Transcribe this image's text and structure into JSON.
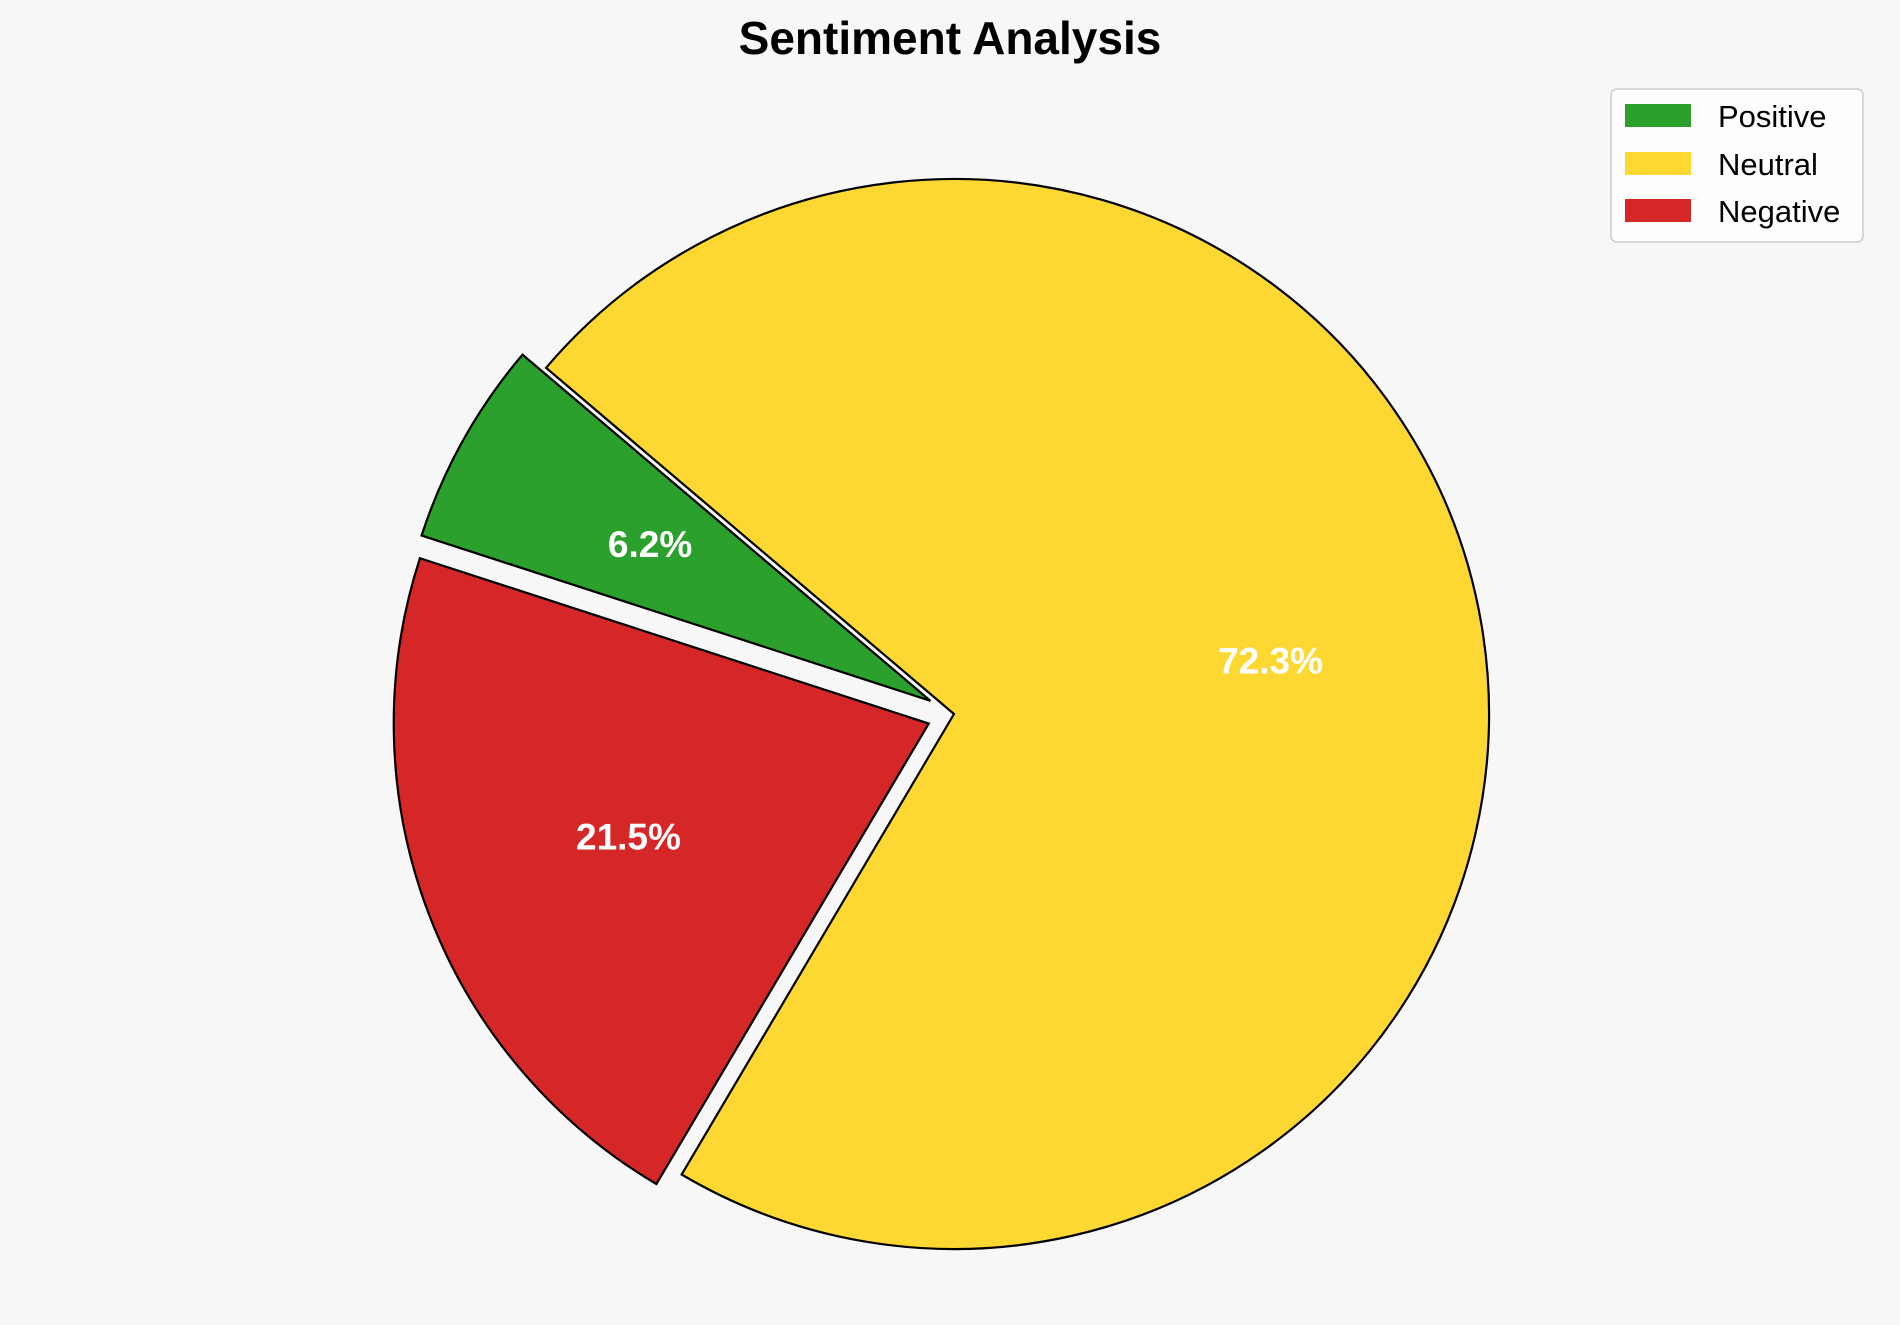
{
  "chart_data": {
    "type": "pie",
    "title": "Sentiment Analysis",
    "categories": [
      "Positive",
      "Neutral",
      "Negative"
    ],
    "values": [
      6.2,
      72.3,
      21.5
    ],
    "labels": [
      "6.2%",
      "72.3%",
      "21.5%"
    ],
    "colors": [
      "#2ca02c",
      "#fdd832",
      "#d62728"
    ],
    "exploded": [
      true,
      false,
      true
    ],
    "legend": {
      "placement": "top-right",
      "entries": [
        "Positive",
        "Neutral",
        "Negative"
      ]
    }
  },
  "colors": {
    "background": "#f7f7f7",
    "edge": "#000000",
    "label_text": "#ffffff"
  }
}
